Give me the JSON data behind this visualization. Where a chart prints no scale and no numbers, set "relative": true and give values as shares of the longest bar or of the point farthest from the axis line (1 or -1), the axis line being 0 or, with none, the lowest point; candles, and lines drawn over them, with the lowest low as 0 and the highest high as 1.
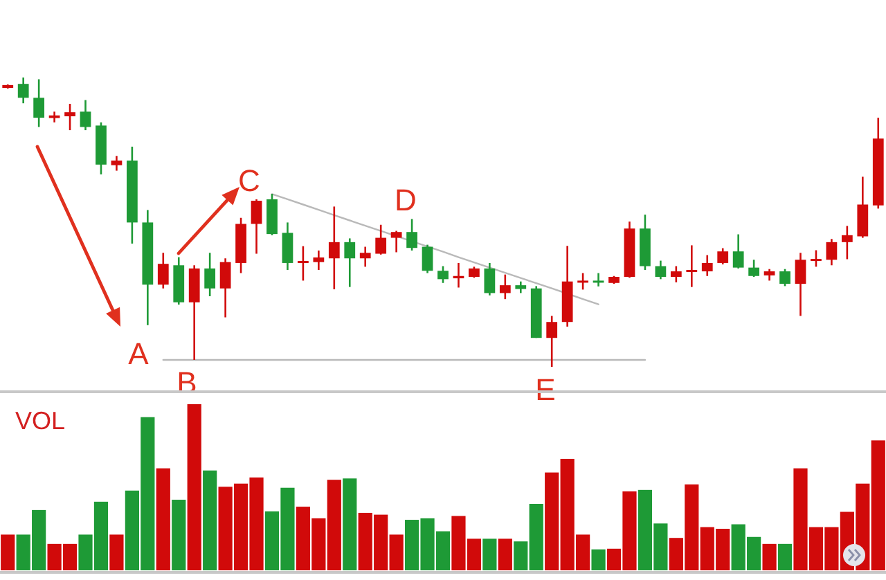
{
  "chart_data": [
    {
      "type": "candlestick",
      "relative": true,
      "categories": [
        null,
        null,
        null,
        null,
        null,
        null,
        null,
        null,
        null,
        null,
        null,
        null,
        null,
        null,
        null,
        null,
        null,
        null,
        null,
        null,
        null,
        null,
        null,
        null,
        null,
        null,
        null,
        null,
        null,
        null,
        null,
        null,
        null,
        null,
        null,
        null,
        null,
        null,
        null,
        null,
        null,
        null,
        null,
        null,
        null,
        null,
        null,
        null,
        null,
        null,
        null,
        null,
        null,
        null,
        null,
        null,
        null
      ],
      "ohlc": [
        [
          0.964,
          0.976,
          0.962,
          0.974
        ],
        [
          0.978,
          1.0,
          0.911,
          0.93
        ],
        [
          0.93,
          0.994,
          0.829,
          0.861
        ],
        [
          0.86,
          0.882,
          0.845,
          0.869
        ],
        [
          0.866,
          0.909,
          0.818,
          0.88
        ],
        [
          0.882,
          0.922,
          0.818,
          0.829
        ],
        [
          0.834,
          0.845,
          0.665,
          0.699
        ],
        [
          0.697,
          0.729,
          0.678,
          0.713
        ],
        [
          0.713,
          0.761,
          0.426,
          0.499
        ],
        [
          0.499,
          0.542,
          0.144,
          0.284
        ],
        [
          0.284,
          0.394,
          0.271,
          0.356
        ],
        [
          0.351,
          0.379,
          0.215,
          0.223
        ],
        [
          0.223,
          0.351,
          0.024,
          0.34
        ],
        [
          0.34,
          0.394,
          0.244,
          0.271
        ],
        [
          0.271,
          0.375,
          0.171,
          0.362
        ],
        [
          0.359,
          0.515,
          0.324,
          0.494
        ],
        [
          0.494,
          0.579,
          0.391,
          0.574
        ],
        [
          0.579,
          0.598,
          0.455,
          0.459
        ],
        [
          0.463,
          0.499,
          0.335,
          0.359
        ],
        [
          0.361,
          0.417,
          0.298,
          0.366
        ],
        [
          0.362,
          0.402,
          0.335,
          0.378
        ],
        [
          0.375,
          0.554,
          0.268,
          0.431
        ],
        [
          0.431,
          0.444,
          0.276,
          0.375
        ],
        [
          0.375,
          0.415,
          0.346,
          0.394
        ],
        [
          0.391,
          0.491,
          0.388,
          0.446
        ],
        [
          0.446,
          0.47,
          0.396,
          0.466
        ],
        [
          0.466,
          0.511,
          0.402,
          0.411
        ],
        [
          0.415,
          0.422,
          0.324,
          0.332
        ],
        [
          0.332,
          0.348,
          0.29,
          0.303
        ],
        [
          0.306,
          0.359,
          0.274,
          0.314
        ],
        [
          0.311,
          0.346,
          0.308,
          0.34
        ],
        [
          0.34,
          0.359,
          0.247,
          0.255
        ],
        [
          0.255,
          0.319,
          0.234,
          0.282
        ],
        [
          0.282,
          0.295,
          0.255,
          0.269
        ],
        [
          0.271,
          0.279,
          0.1,
          0.1
        ],
        [
          0.1,
          0.176,
          0.0,
          0.155
        ],
        [
          0.155,
          0.418,
          0.139,
          0.295
        ],
        [
          0.292,
          0.324,
          0.267,
          0.298
        ],
        [
          0.298,
          0.324,
          0.278,
          0.292
        ],
        [
          0.29,
          0.314,
          0.287,
          0.311
        ],
        [
          0.311,
          0.502,
          0.308,
          0.478
        ],
        [
          0.478,
          0.526,
          0.335,
          0.348
        ],
        [
          0.348,
          0.367,
          0.303,
          0.311
        ],
        [
          0.311,
          0.348,
          0.292,
          0.33
        ],
        [
          0.328,
          0.42,
          0.276,
          0.335
        ],
        [
          0.33,
          0.386,
          0.314,
          0.359
        ],
        [
          0.359,
          0.41,
          0.354,
          0.399
        ],
        [
          0.399,
          0.458,
          0.34,
          0.343
        ],
        [
          0.343,
          0.37,
          0.311,
          0.314
        ],
        [
          0.316,
          0.338,
          0.298,
          0.33
        ],
        [
          0.33,
          0.338,
          0.279,
          0.287
        ],
        [
          0.287,
          0.394,
          0.176,
          0.37
        ],
        [
          0.367,
          0.403,
          0.346,
          0.373
        ],
        [
          0.37,
          0.442,
          0.351,
          0.431
        ],
        [
          0.431,
          0.487,
          0.372,
          0.455
        ],
        [
          0.451,
          0.657,
          0.446,
          0.561
        ],
        [
          0.558,
          0.861,
          0.547,
          0.789
        ]
      ],
      "colors": [
        "#d10a0a",
        "#1e9a36",
        "#1e9a36",
        "#d10a0a",
        "#d10a0a",
        "#1e9a36",
        "#1e9a36",
        "#d10a0a",
        "#1e9a36",
        "#1e9a36",
        "#d10a0a",
        "#1e9a36",
        "#d10a0a",
        "#1e9a36",
        "#d10a0a",
        "#d10a0a",
        "#d10a0a",
        "#1e9a36",
        "#1e9a36",
        "#d10a0a",
        "#d10a0a",
        "#d10a0a",
        "#1e9a36",
        "#d10a0a",
        "#d10a0a",
        "#d10a0a",
        "#1e9a36",
        "#1e9a36",
        "#1e9a36",
        "#d10a0a",
        "#d10a0a",
        "#1e9a36",
        "#d10a0a",
        "#1e9a36",
        "#1e9a36",
        "#d10a0a",
        "#d10a0a",
        "#d10a0a",
        "#1e9a36",
        "#d10a0a",
        "#d10a0a",
        "#1e9a36",
        "#1e9a36",
        "#d10a0a",
        "#d10a0a",
        "#d10a0a",
        "#d10a0a",
        "#1e9a36",
        "#1e9a36",
        "#d10a0a",
        "#1e9a36",
        "#d10a0a",
        "#d10a0a",
        "#d10a0a",
        "#d10a0a",
        "#d10a0a",
        "#d10a0a"
      ],
      "series": [
        {
          "type": "line",
          "color": "#b9b9b9",
          "values": [
            null,
            null,
            null,
            null,
            null,
            null,
            null,
            null,
            null,
            null,
            0.024,
            0.024,
            0.024,
            0.024,
            0.024,
            0.024,
            0.024,
            0.024,
            0.024,
            0.024,
            0.024,
            0.024,
            0.024,
            0.024,
            0.024,
            0.024,
            0.024,
            0.024,
            0.024,
            0.024,
            0.024,
            0.024,
            0.024,
            0.024,
            0.024,
            0.024,
            0.024,
            0.024,
            0.024,
            0.024,
            0.024,
            0.024,
            null,
            null,
            null,
            null,
            null,
            null,
            null,
            null,
            null,
            null,
            null,
            null,
            null,
            null,
            null
          ]
        },
        {
          "type": "line",
          "color": "#b9b9b9",
          "values": [
            null,
            null,
            null,
            null,
            null,
            null,
            null,
            null,
            null,
            null,
            null,
            null,
            null,
            null,
            null,
            null,
            null,
            0.597,
            0.579,
            0.561,
            0.543,
            0.524,
            0.506,
            0.488,
            0.47,
            0.452,
            0.434,
            0.416,
            0.398,
            0.379,
            0.361,
            0.343,
            0.325,
            0.307,
            0.289,
            0.271,
            0.253,
            0.234,
            0.216,
            null,
            null,
            null,
            null,
            null,
            null,
            null,
            null,
            null,
            null,
            null,
            null,
            null,
            null,
            null,
            null,
            null,
            null
          ]
        }
      ],
      "annotations": [
        "A",
        "B",
        "C",
        "D",
        "E"
      ]
    },
    {
      "type": "bar",
      "relative": true,
      "title": "VOL",
      "categories": [
        null,
        null,
        null,
        null,
        null,
        null,
        null,
        null,
        null,
        null,
        null,
        null,
        null,
        null,
        null,
        null,
        null,
        null,
        null,
        null,
        null,
        null,
        null,
        null,
        null,
        null,
        null,
        null,
        null,
        null,
        null,
        null,
        null,
        null,
        null,
        null,
        null,
        null,
        null,
        null,
        null,
        null,
        null,
        null,
        null,
        null,
        null,
        null,
        null,
        null,
        null,
        null,
        null,
        null,
        null,
        null,
        null
      ],
      "values": [
        0.215,
        0.215,
        0.363,
        0.159,
        0.159,
        0.215,
        0.413,
        0.215,
        0.48,
        0.922,
        0.614,
        0.425,
        1.0,
        0.601,
        0.503,
        0.522,
        0.559,
        0.355,
        0.497,
        0.383,
        0.313,
        0.545,
        0.553,
        0.346,
        0.335,
        0.215,
        0.304,
        0.313,
        0.235,
        0.327,
        0.19,
        0.19,
        0.19,
        0.174,
        0.4,
        0.589,
        0.671,
        0.215,
        0.126,
        0.13,
        0.475,
        0.484,
        0.282,
        0.195,
        0.517,
        0.26,
        0.25,
        0.277,
        0.201,
        0.159,
        0.159,
        0.614,
        0.26,
        0.26,
        0.352,
        0.522,
        0.782
      ],
      "colors": [
        "#d10a0a",
        "#1e9a36",
        "#1e9a36",
        "#d10a0a",
        "#d10a0a",
        "#1e9a36",
        "#1e9a36",
        "#d10a0a",
        "#1e9a36",
        "#1e9a36",
        "#d10a0a",
        "#1e9a36",
        "#d10a0a",
        "#1e9a36",
        "#d10a0a",
        "#d10a0a",
        "#d10a0a",
        "#1e9a36",
        "#1e9a36",
        "#d10a0a",
        "#d10a0a",
        "#d10a0a",
        "#1e9a36",
        "#d10a0a",
        "#d10a0a",
        "#d10a0a",
        "#1e9a36",
        "#1e9a36",
        "#1e9a36",
        "#d10a0a",
        "#d10a0a",
        "#1e9a36",
        "#d10a0a",
        "#1e9a36",
        "#1e9a36",
        "#d10a0a",
        "#d10a0a",
        "#d10a0a",
        "#1e9a36",
        "#d10a0a",
        "#d10a0a",
        "#1e9a36",
        "#1e9a36",
        "#d10a0a",
        "#d10a0a",
        "#d10a0a",
        "#d10a0a",
        "#1e9a36",
        "#1e9a36",
        "#d10a0a",
        "#1e9a36",
        "#d10a0a",
        "#d10a0a",
        "#d10a0a",
        "#d10a0a",
        "#d10a0a",
        "#d10a0a"
      ]
    }
  ]
}
